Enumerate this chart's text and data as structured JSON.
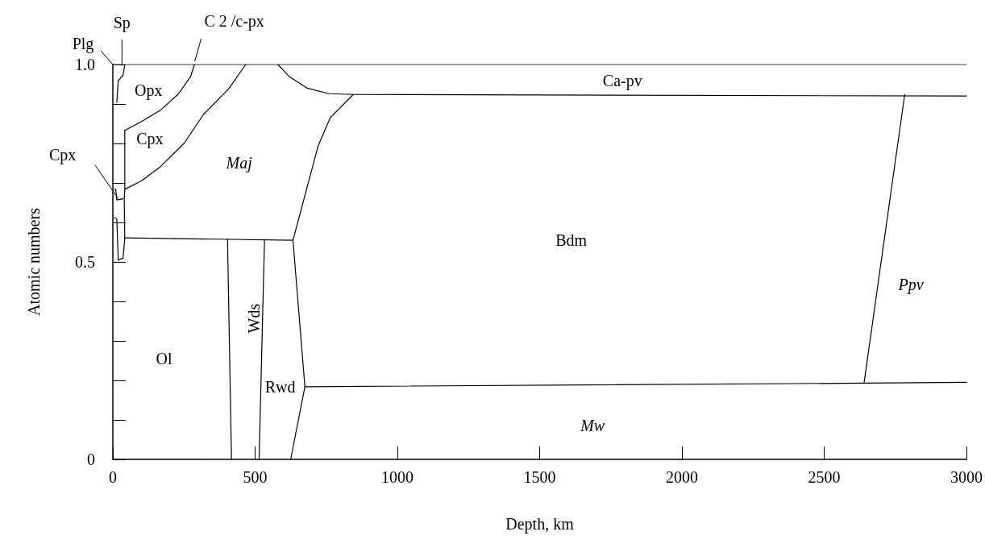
{
  "chart_data": {
    "type": "line",
    "xlabel": "Depth, km",
    "ylabel": "Atomic numbers",
    "xlim": [
      0,
      3000
    ],
    "xticks": [
      0,
      500,
      1000,
      1500,
      2000,
      2500,
      3000
    ],
    "ylim": [
      0,
      1.0
    ],
    "yticks": [
      0,
      {
        "value": 0.1,
        "label": null
      },
      {
        "value": 0.2,
        "label": null
      },
      {
        "value": 0.3,
        "label": null
      },
      {
        "value": 0.4,
        "label": null
      },
      {
        "value": 0.5,
        "label": "0.5"
      },
      {
        "value": 0.6,
        "label": null
      },
      {
        "value": 0.7,
        "label": null
      },
      {
        "value": 0.8,
        "label": null
      },
      {
        "value": 0.9,
        "label": null
      },
      {
        "value": 1.0,
        "label": "1.0"
      }
    ],
    "grid": false,
    "marker": "none",
    "line_style": "solid",
    "series": [
      {
        "color": "#000000",
        "x": [
          0,
          3000
        ],
        "values": [
          1.0,
          1.0
        ]
      },
      {
        "color": "#000000",
        "x": [
          580,
          619,
          683,
          760,
          845,
          3000
        ],
        "values": [
          1.0,
          0.97,
          0.94,
          0.926,
          0.924,
          0.92
        ]
      },
      {
        "color": "#000000",
        "x": [
          845,
          764,
          722,
          633,
          675,
          625
        ],
        "values": [
          0.924,
          0.865,
          0.795,
          0.555,
          0.184,
          0
        ]
      },
      {
        "color": "#000000",
        "x": [
          42,
          633
        ],
        "values": [
          0.561,
          0.555
        ]
      },
      {
        "color": "#000000",
        "x": [
          403,
          417
        ],
        "values": [
          0.557,
          0
        ]
      },
      {
        "color": "#000000",
        "x": [
          533,
          514
        ],
        "values": [
          0.555,
          0
        ]
      },
      {
        "color": "#000000",
        "x": [
          675,
          2640,
          3000
        ],
        "values": [
          0.184,
          0.193,
          0.195
        ]
      },
      {
        "color": "#000000",
        "x": [
          2640,
          2783
        ],
        "values": [
          0.193,
          0.924
        ]
      },
      {
        "color": "#000000",
        "x": [
          42,
          100,
          167,
          230,
          273,
          287
        ],
        "values": [
          0.833,
          0.855,
          0.884,
          0.925,
          0.969,
          1.0
        ]
      },
      {
        "color": "#000000",
        "x": [
          42,
          100,
          167,
          250,
          319,
          408,
          467
        ],
        "values": [
          0.684,
          0.705,
          0.741,
          0.8,
          0.874,
          0.939,
          1.0
        ]
      },
      {
        "color": "#000000",
        "x": [
          42,
          36,
          19,
          14
        ],
        "values": [
          1.0,
          0.973,
          0.959,
          0.904
        ]
      },
      {
        "color": "#000000",
        "x": [
          42,
          42,
          40,
          42,
          36,
          19,
          14,
          6
        ],
        "values": [
          0.833,
          0.684,
          0.66,
          0.56,
          0.51,
          0.504,
          0.608,
          0.612
        ]
      },
      {
        "color": "#000000",
        "x": [
          6,
          10,
          14,
          36
        ],
        "values": [
          0.684,
          0.684,
          0.657,
          0.66
        ]
      }
    ],
    "annotations": [
      {
        "text": "Plg",
        "x": 0,
        "y": 1.0
      },
      {
        "text": "Sp",
        "x": 32,
        "y": 1.0
      },
      {
        "text": "C 2 /c-px",
        "x": 285,
        "y": 1.0
      },
      {
        "text": "Cpx",
        "x": 19,
        "y": 0.66
      },
      "Opx",
      "Cpx",
      "Maj",
      "Bdm",
      "Ca-pv",
      "Ppv",
      "Mw",
      "Ol",
      "Wds",
      "Rwd"
    ]
  }
}
